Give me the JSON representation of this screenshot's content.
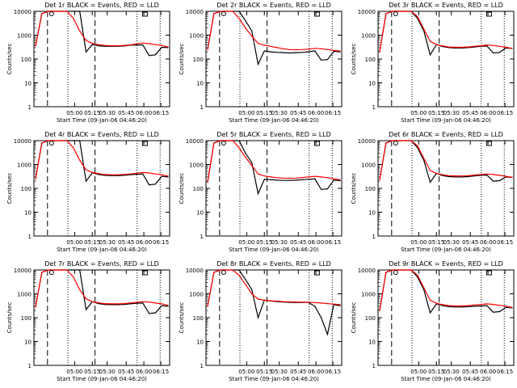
{
  "colors": {
    "background": "#ffffff",
    "events": "#000000",
    "lld": "#ff0000",
    "axis": "#000000"
  },
  "chart_data": [
    {
      "type": "line",
      "title": "Det  1r BLACK = Events, RED = LLD",
      "xlabel": "Start Time (09-Jan-06 04:46:20)",
      "ylabel": "Counts/sec",
      "xticks": [
        "05:00",
        "05:15",
        "05:30",
        "05:45",
        "06:00",
        "06:15"
      ],
      "yticks": [
        "1",
        "10",
        "100",
        "1000",
        "10000"
      ],
      "yscale": "log",
      "ylim": [
        1,
        10000
      ],
      "grid": false,
      "series": [
        {
          "name": "Events",
          "color": "#000000",
          "y": [
            350,
            8000,
            10000,
            10000,
            10000,
            10000,
            10000,
            10000,
            200,
            400,
            360,
            340,
            340,
            345,
            350,
            380,
            390,
            390,
            140,
            150,
            310,
            300
          ]
        },
        {
          "name": "LLD",
          "color": "#ff0000",
          "y": [
            350,
            8000,
            10000,
            10000,
            10000,
            10000,
            5000,
            1500,
            600,
            450,
            400,
            370,
            360,
            360,
            370,
            390,
            430,
            470,
            440,
            400,
            370,
            320
          ]
        }
      ]
    },
    {
      "type": "line",
      "title": "Det  2r BLACK = Events, RED = LLD",
      "xlabel": "Start Time (09-Jan-06 04:46:20)",
      "ylabel": "Counts/sec",
      "xticks": [
        "05:00",
        "05:15",
        "05:30",
        "05:45",
        "06:00",
        "06:15"
      ],
      "yticks": [
        "1",
        "10",
        "100",
        "1000",
        "10000"
      ],
      "yscale": "log",
      "ylim": [
        1,
        10000
      ],
      "grid": false,
      "series": [
        {
          "name": "Events",
          "color": "#000000",
          "y": [
            250,
            8000,
            10000,
            10000,
            10000,
            10000,
            4000,
            1500,
            60,
            220,
            200,
            190,
            185,
            180,
            185,
            190,
            200,
            220,
            90,
            95,
            210,
            200
          ]
        },
        {
          "name": "LLD",
          "color": "#ff0000",
          "y": [
            250,
            8000,
            10000,
            10000,
            10000,
            5000,
            2000,
            900,
            450,
            380,
            340,
            300,
            270,
            250,
            245,
            250,
            260,
            280,
            270,
            250,
            230,
            215
          ]
        }
      ]
    },
    {
      "type": "line",
      "title": "Det  3r BLACK = Events, RED = LLD",
      "xlabel": "Start Time (09-Jan-06 04:46:20)",
      "ylabel": "Counts/sec",
      "xticks": [
        "05:00",
        "05:15",
        "05:30",
        "05:45",
        "06:00",
        "06:15"
      ],
      "yticks": [
        "1",
        "10",
        "100",
        "1000",
        "10000"
      ],
      "yscale": "log",
      "ylim": [
        1,
        10000
      ],
      "grid": false,
      "series": [
        {
          "name": "Events",
          "color": "#000000",
          "y": [
            200,
            8000,
            10000,
            10000,
            10000,
            10000,
            5000,
            1500,
            150,
            400,
            330,
            300,
            290,
            290,
            300,
            320,
            340,
            350,
            180,
            190,
            290,
            280
          ]
        },
        {
          "name": "LLD",
          "color": "#ff0000",
          "y": [
            200,
            8000,
            10000,
            10000,
            10000,
            10000,
            6000,
            1800,
            550,
            400,
            350,
            320,
            310,
            310,
            320,
            340,
            360,
            390,
            370,
            340,
            310,
            280
          ]
        }
      ]
    },
    {
      "type": "line",
      "title": "Det  4r BLACK = Events, RED = LLD",
      "xlabel": "Start Time (09-Jan-06 04:46:20)",
      "ylabel": "Counts/sec",
      "xticks": [
        "05:00",
        "05:15",
        "05:30",
        "05:45",
        "06:00",
        "06:15"
      ],
      "yticks": [
        "1",
        "10",
        "100",
        "1000",
        "10000"
      ],
      "yscale": "log",
      "ylim": [
        1,
        10000
      ],
      "grid": false,
      "series": [
        {
          "name": "Events",
          "color": "#000000",
          "y": [
            250,
            8000,
            10000,
            10000,
            10000,
            10000,
            10000,
            10000,
            200,
            450,
            380,
            350,
            340,
            340,
            350,
            370,
            390,
            400,
            140,
            150,
            320,
            300
          ]
        },
        {
          "name": "LLD",
          "color": "#ff0000",
          "y": [
            250,
            8000,
            10000,
            10000,
            10000,
            10000,
            5000,
            1500,
            600,
            460,
            410,
            380,
            370,
            370,
            380,
            400,
            430,
            460,
            440,
            400,
            370,
            330
          ]
        }
      ]
    },
    {
      "type": "line",
      "title": "Det  5r BLACK = Events, RED = LLD",
      "xlabel": "Start Time (09-Jan-06 04:46:20)",
      "ylabel": "Counts/sec",
      "xticks": [
        "05:00",
        "05:15",
        "05:30",
        "05:45",
        "06:00",
        "06:15"
      ],
      "yticks": [
        "1",
        "10",
        "100",
        "1000",
        "10000"
      ],
      "yscale": "log",
      "ylim": [
        1,
        10000
      ],
      "grid": false,
      "series": [
        {
          "name": "Events",
          "color": "#000000",
          "y": [
            180,
            8000,
            10000,
            10000,
            10000,
            10000,
            3000,
            1200,
            60,
            240,
            230,
            220,
            215,
            215,
            220,
            230,
            240,
            250,
            90,
            95,
            220,
            210
          ]
        },
        {
          "name": "LLD",
          "color": "#ff0000",
          "y": [
            180,
            8000,
            10000,
            10000,
            10000,
            5000,
            2000,
            900,
            400,
            330,
            300,
            280,
            270,
            265,
            270,
            285,
            300,
            320,
            300,
            280,
            250,
            230
          ]
        }
      ]
    },
    {
      "type": "line",
      "title": "Det  6r BLACK = Events, RED = LLD",
      "xlabel": "Start Time (09-Jan-06 04:46:20)",
      "ylabel": "Counts/sec",
      "xticks": [
        "05:00",
        "05:15",
        "05:30",
        "05:45",
        "06:00",
        "06:15"
      ],
      "yticks": [
        "1",
        "10",
        "100",
        "1000",
        "10000"
      ],
      "yscale": "log",
      "ylim": [
        1,
        10000
      ],
      "grid": false,
      "series": [
        {
          "name": "Events",
          "color": "#000000",
          "y": [
            230,
            8000,
            10000,
            10000,
            10000,
            10000,
            5000,
            1500,
            180,
            420,
            340,
            310,
            300,
            300,
            310,
            330,
            350,
            360,
            200,
            210,
            300,
            290
          ]
        },
        {
          "name": "LLD",
          "color": "#ff0000",
          "y": [
            230,
            8000,
            10000,
            10000,
            10000,
            10000,
            6000,
            1800,
            560,
            420,
            370,
            340,
            330,
            330,
            340,
            360,
            380,
            400,
            380,
            350,
            320,
            290
          ]
        }
      ]
    },
    {
      "type": "line",
      "title": "Det  7r BLACK = Events, RED = LLD",
      "xlabel": "Start Time (09-Jan-06 04:46:20)",
      "ylabel": "Counts/sec",
      "xticks": [
        "05:00",
        "05:15",
        "05:30",
        "05:45",
        "06:00",
        "06:15"
      ],
      "yticks": [
        "1",
        "10",
        "100",
        "1000",
        "10000"
      ],
      "yscale": "log",
      "ylim": [
        1,
        10000
      ],
      "grid": false,
      "series": [
        {
          "name": "Events",
          "color": "#000000",
          "y": [
            280,
            8000,
            10000,
            10000,
            10000,
            10000,
            10000,
            10000,
            220,
            470,
            390,
            360,
            350,
            350,
            360,
            380,
            400,
            410,
            150,
            160,
            320,
            300
          ]
        },
        {
          "name": "LLD",
          "color": "#ff0000",
          "y": [
            280,
            8000,
            10000,
            10000,
            10000,
            10000,
            5000,
            1500,
            620,
            470,
            420,
            390,
            380,
            380,
            390,
            410,
            440,
            470,
            450,
            410,
            380,
            330
          ]
        }
      ]
    },
    {
      "type": "line",
      "title": "Det  8r BLACK = Events, RED = LLD",
      "xlabel": "Start Time (09-Jan-06 04:46:20)",
      "ylabel": "Counts/sec",
      "xticks": [
        "05:00",
        "05:15",
        "05:30",
        "05:45",
        "06:00",
        "06:15"
      ],
      "yticks": [
        "1",
        "10",
        "100",
        "1000",
        "10000"
      ],
      "yscale": "log",
      "ylim": [
        1,
        10000
      ],
      "grid": false,
      "series": [
        {
          "name": "Events",
          "color": "#000000",
          "y": [
            300,
            8000,
            10000,
            10000,
            10000,
            10000,
            4000,
            1500,
            100,
            550,
            500,
            470,
            450,
            440,
            430,
            440,
            430,
            300,
            100,
            20,
            350,
            320
          ]
        },
        {
          "name": "LLD",
          "color": "#ff0000",
          "y": [
            300,
            8000,
            10000,
            10000,
            10000,
            6000,
            2500,
            1000,
            600,
            540,
            510,
            490,
            470,
            460,
            450,
            450,
            440,
            430,
            410,
            390,
            370,
            350
          ]
        }
      ]
    },
    {
      "type": "line",
      "title": "Det  9r BLACK = Events, RED = LLD",
      "xlabel": "Start Time (09-Jan-06 04:46:20)",
      "ylabel": "Counts/sec",
      "xticks": [
        "05:00",
        "05:15",
        "05:30",
        "05:45",
        "06:00",
        "06:15"
      ],
      "yticks": [
        "1",
        "10",
        "100",
        "1000",
        "10000"
      ],
      "yscale": "log",
      "ylim": [
        1,
        10000
      ],
      "grid": false,
      "series": [
        {
          "name": "Events",
          "color": "#000000",
          "y": [
            200,
            8000,
            10000,
            10000,
            10000,
            10000,
            5000,
            1500,
            160,
            380,
            320,
            290,
            280,
            280,
            290,
            300,
            310,
            320,
            170,
            180,
            270,
            260
          ]
        },
        {
          "name": "LLD",
          "color": "#ff0000",
          "y": [
            200,
            8000,
            10000,
            10000,
            10000,
            10000,
            6000,
            1800,
            540,
            400,
            350,
            320,
            310,
            310,
            320,
            340,
            360,
            380,
            360,
            330,
            300,
            270
          ]
        }
      ]
    }
  ]
}
